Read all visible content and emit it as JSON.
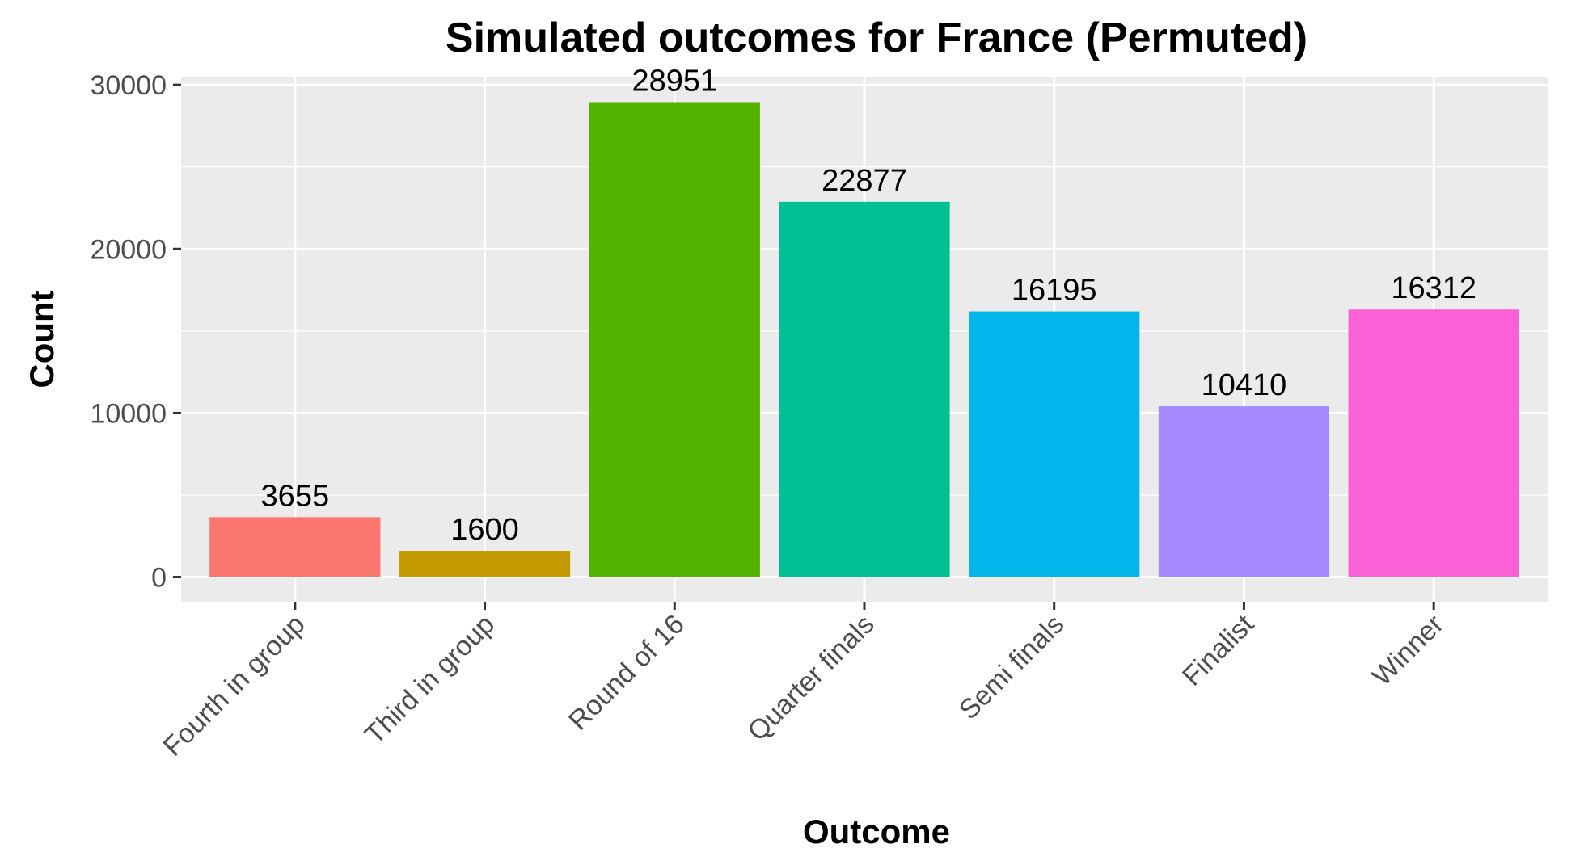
{
  "chart_data": {
    "type": "bar",
    "title": "Simulated outcomes for France (Permuted)",
    "xlabel": "Outcome",
    "ylabel": "Count",
    "categories": [
      "Fourth in group",
      "Third in group",
      "Round of 16",
      "Quarter finals",
      "Semi finals",
      "Finalist",
      "Winner"
    ],
    "values": [
      3655,
      1600,
      28951,
      22877,
      16195,
      10410,
      16312
    ],
    "colors": [
      "#F8766D",
      "#C49A00",
      "#53B400",
      "#00C094",
      "#00B6EB",
      "#A58AFF",
      "#FB61D7"
    ],
    "yticks": [
      "0",
      "10000",
      "20000",
      "30000"
    ],
    "ylim": [
      -1500,
      30500
    ],
    "grid": true,
    "panel_background": "#EBEBEB",
    "legend": "none"
  }
}
